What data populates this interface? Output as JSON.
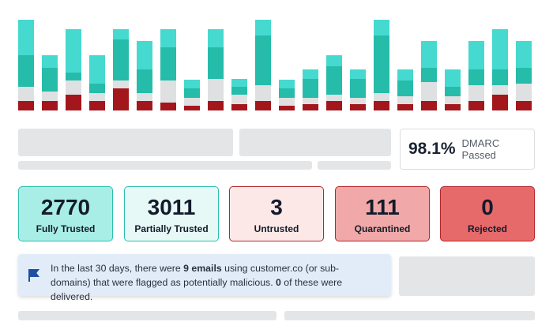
{
  "chart_data": {
    "type": "stacked_bar",
    "ylim": [
      0,
      115
    ],
    "series": [
      {
        "color": "#a3161c",
        "values": [
          12,
          12,
          20,
          12,
          28,
          12,
          10,
          6,
          12,
          8,
          12,
          6,
          8,
          12,
          8,
          12,
          8,
          12,
          8,
          12,
          20,
          12
        ]
      },
      {
        "color": "#dfe0e1",
        "values": [
          18,
          12,
          18,
          10,
          10,
          10,
          28,
          10,
          28,
          12,
          20,
          10,
          8,
          8,
          8,
          10,
          10,
          24,
          10,
          20,
          12,
          22
        ]
      },
      {
        "color": "#25bcaa",
        "values": [
          40,
          30,
          10,
          12,
          52,
          30,
          42,
          12,
          40,
          10,
          63,
          12,
          24,
          36,
          24,
          73,
          20,
          18,
          12,
          20,
          20,
          20
        ]
      },
      {
        "color": "#45d9cf",
        "values": [
          45,
          16,
          55,
          36,
          13,
          36,
          23,
          11,
          23,
          10,
          20,
          11,
          12,
          14,
          12,
          20,
          14,
          34,
          22,
          36,
          51,
          34
        ]
      }
    ]
  },
  "dmarc": {
    "value": "98.1%",
    "label": "DMARC Passed"
  },
  "stats": [
    {
      "value": 2770,
      "label": "Fully Trusted"
    },
    {
      "value": 3011,
      "label": "Partially Trusted"
    },
    {
      "value": 3,
      "label": "Untrusted"
    },
    {
      "value": 111,
      "label": "Quarantined"
    },
    {
      "value": 0,
      "label": "Rejected"
    }
  ],
  "alert": {
    "segments": [
      {
        "text": "In the last 30 days, there were ",
        "bold": false
      },
      {
        "text": "9 emails",
        "bold": true
      },
      {
        "text": " using customer.co (or sub-domains) that were flagged as potentially malicious. ",
        "bold": false
      },
      {
        "text": "0",
        "bold": true
      },
      {
        "text": " of these were delivered.",
        "bold": false
      }
    ]
  }
}
